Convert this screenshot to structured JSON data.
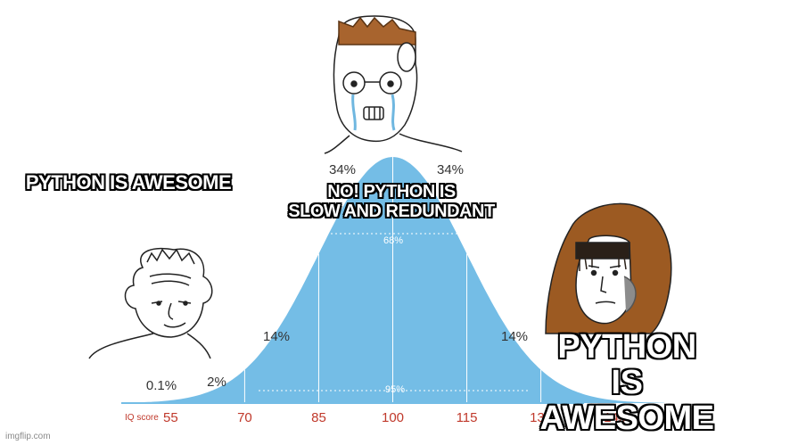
{
  "captions": {
    "left": "PYTHON IS AWESOME",
    "center": "NO! PYTHON IS\nSLOW AND REDUNDANT",
    "right": "PYTHON\nIS AWESOME"
  },
  "watermark": "imgflip.com",
  "chart_data": {
    "type": "area",
    "x_axis_label": "IQ score",
    "x_ticks": [
      "55",
      "70",
      "85",
      "100",
      "115",
      "130",
      "145"
    ],
    "x_range": [
      45,
      155
    ],
    "percent_labels": {
      "center_left": "34%",
      "center_right": "34%",
      "one_sd_band": "68%",
      "second_left": "14%",
      "second_right": "14%",
      "third_left": "2%",
      "tail_left": "0.1%",
      "two_sd_band": "95%"
    },
    "distribution": {
      "mean": 100,
      "sd": 15
    },
    "colors": {
      "curve": "#74bde6",
      "axis_labels": "#c0392b",
      "percent": "#333333"
    }
  }
}
